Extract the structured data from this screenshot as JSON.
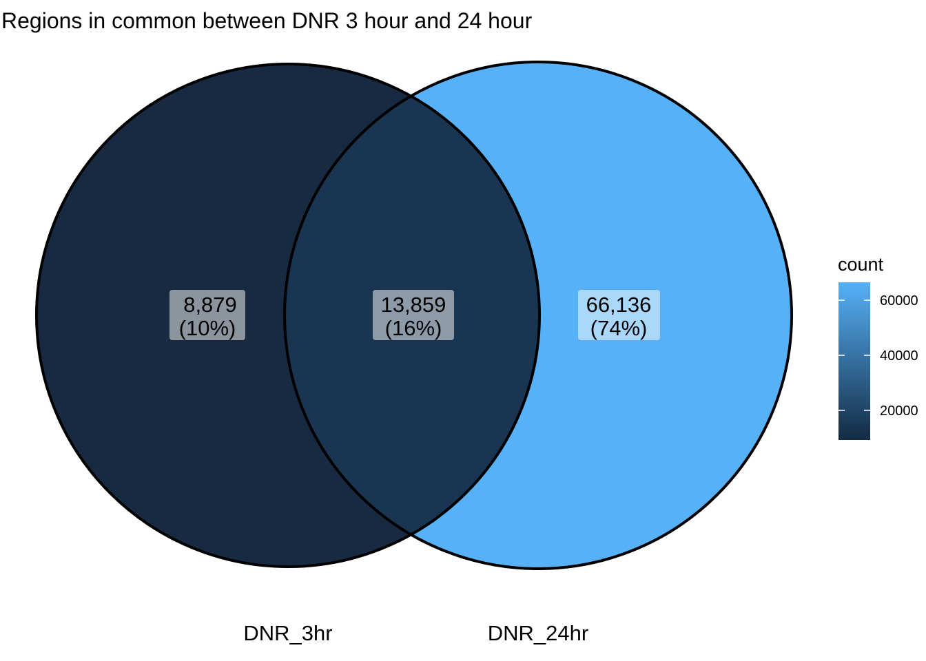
{
  "title": "Regions in common between DNR 3 hour and 24 hour",
  "sets": [
    {
      "label": "DNR_3hr",
      "color": "#172A42"
    },
    {
      "label": "DNR_24hr",
      "color": "#56B1F7"
    }
  ],
  "regions": [
    {
      "id": "dnr-3hr-only",
      "count": "8,879",
      "percent": "(10%)",
      "color": "#172A42",
      "label_bg": "#8C949E"
    },
    {
      "id": "intersection",
      "count": "13,859",
      "percent": "(16%)",
      "color": "#1A3551",
      "label_bg": "#8D9AA8"
    },
    {
      "id": "dnr-24hr-only",
      "count": "66,136",
      "percent": "(74%)",
      "color": "#56B1F7",
      "label_bg": "#AAD8FB"
    }
  ],
  "legend": {
    "title": "count",
    "ticks": [
      "20000",
      "40000",
      "60000"
    ],
    "color_low": "#132B43",
    "color_high": "#56B1F7"
  }
}
